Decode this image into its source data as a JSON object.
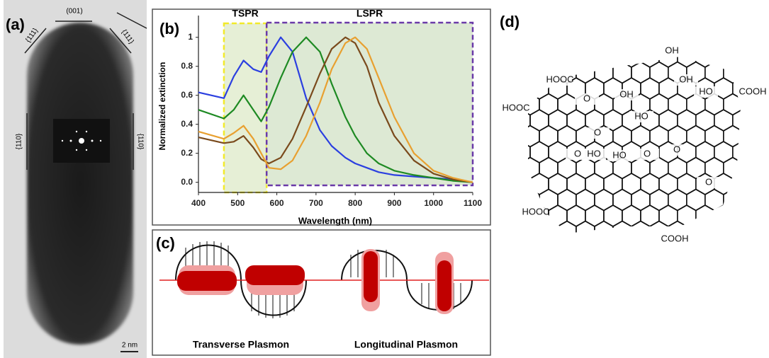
{
  "panel_a": {
    "label": "(a)",
    "facets": [
      "(001)",
      "{111}",
      "{111}",
      "{110}",
      "{110}"
    ],
    "scale_bar": "2 nm"
  },
  "chart_data": {
    "type": "line",
    "label": "(b)",
    "xlabel": "Wavelength (nm)",
    "ylabel": "Normalized extinction",
    "regions": [
      {
        "name": "TSPR",
        "range": [
          465,
          574
        ],
        "color": "#f2ea2a"
      },
      {
        "name": "LSPR",
        "range": [
          574,
          1100
        ],
        "color": "#6a3aa8"
      }
    ],
    "x": [
      400,
      465,
      490,
      515,
      540,
      560,
      580,
      610,
      640,
      675,
      710,
      740,
      775,
      800,
      830,
      860,
      900,
      950,
      1000,
      1050,
      1100
    ],
    "series": [
      {
        "color": "#2b3fe0",
        "values": [
          0.62,
          0.58,
          0.73,
          0.84,
          0.78,
          0.76,
          0.87,
          1.0,
          0.9,
          0.58,
          0.36,
          0.25,
          0.17,
          0.13,
          0.1,
          0.07,
          0.05,
          0.04,
          0.03,
          0.02,
          0.0
        ]
      },
      {
        "color": "#1e8a23",
        "values": [
          0.5,
          0.44,
          0.5,
          0.6,
          0.5,
          0.42,
          0.52,
          0.72,
          0.9,
          1.0,
          0.9,
          0.68,
          0.45,
          0.32,
          0.2,
          0.13,
          0.08,
          0.05,
          0.03,
          0.01,
          0.0
        ]
      },
      {
        "color": "#7a4a1c",
        "values": [
          0.31,
          0.27,
          0.28,
          0.32,
          0.24,
          0.16,
          0.13,
          0.17,
          0.3,
          0.52,
          0.75,
          0.92,
          1.0,
          0.96,
          0.8,
          0.55,
          0.32,
          0.15,
          0.06,
          0.02,
          0.0
        ]
      },
      {
        "color": "#e8a030",
        "values": [
          0.35,
          0.3,
          0.34,
          0.39,
          0.3,
          0.2,
          0.1,
          0.09,
          0.15,
          0.32,
          0.55,
          0.78,
          0.96,
          1.0,
          0.92,
          0.72,
          0.45,
          0.2,
          0.08,
          0.03,
          0.0
        ]
      }
    ],
    "xlim": [
      400,
      1100
    ],
    "ylim": [
      -0.07,
      1.15
    ],
    "xticks": [
      400,
      500,
      600,
      700,
      800,
      900,
      1000,
      1100
    ],
    "yticks": [
      0.0,
      0.2,
      0.4,
      0.6,
      0.8,
      1
    ],
    "ytick_labels": [
      "0.0",
      "0.2",
      "0.4",
      "0.6",
      "0.8",
      "1"
    ]
  },
  "panel_c": {
    "label": "(c)",
    "transverse": "Transverse Plasmon",
    "longitudinal": "Longitudinal  Plasmon"
  },
  "panel_d": {
    "label": "(d)",
    "groups": [
      "OH",
      "HOOC",
      "OH",
      "OH",
      "HO",
      "COOH",
      "HOOC",
      "O",
      "HO",
      "O",
      "O",
      "HO",
      "O",
      "HO",
      "O",
      "O",
      "HOOC",
      "COOH"
    ]
  }
}
